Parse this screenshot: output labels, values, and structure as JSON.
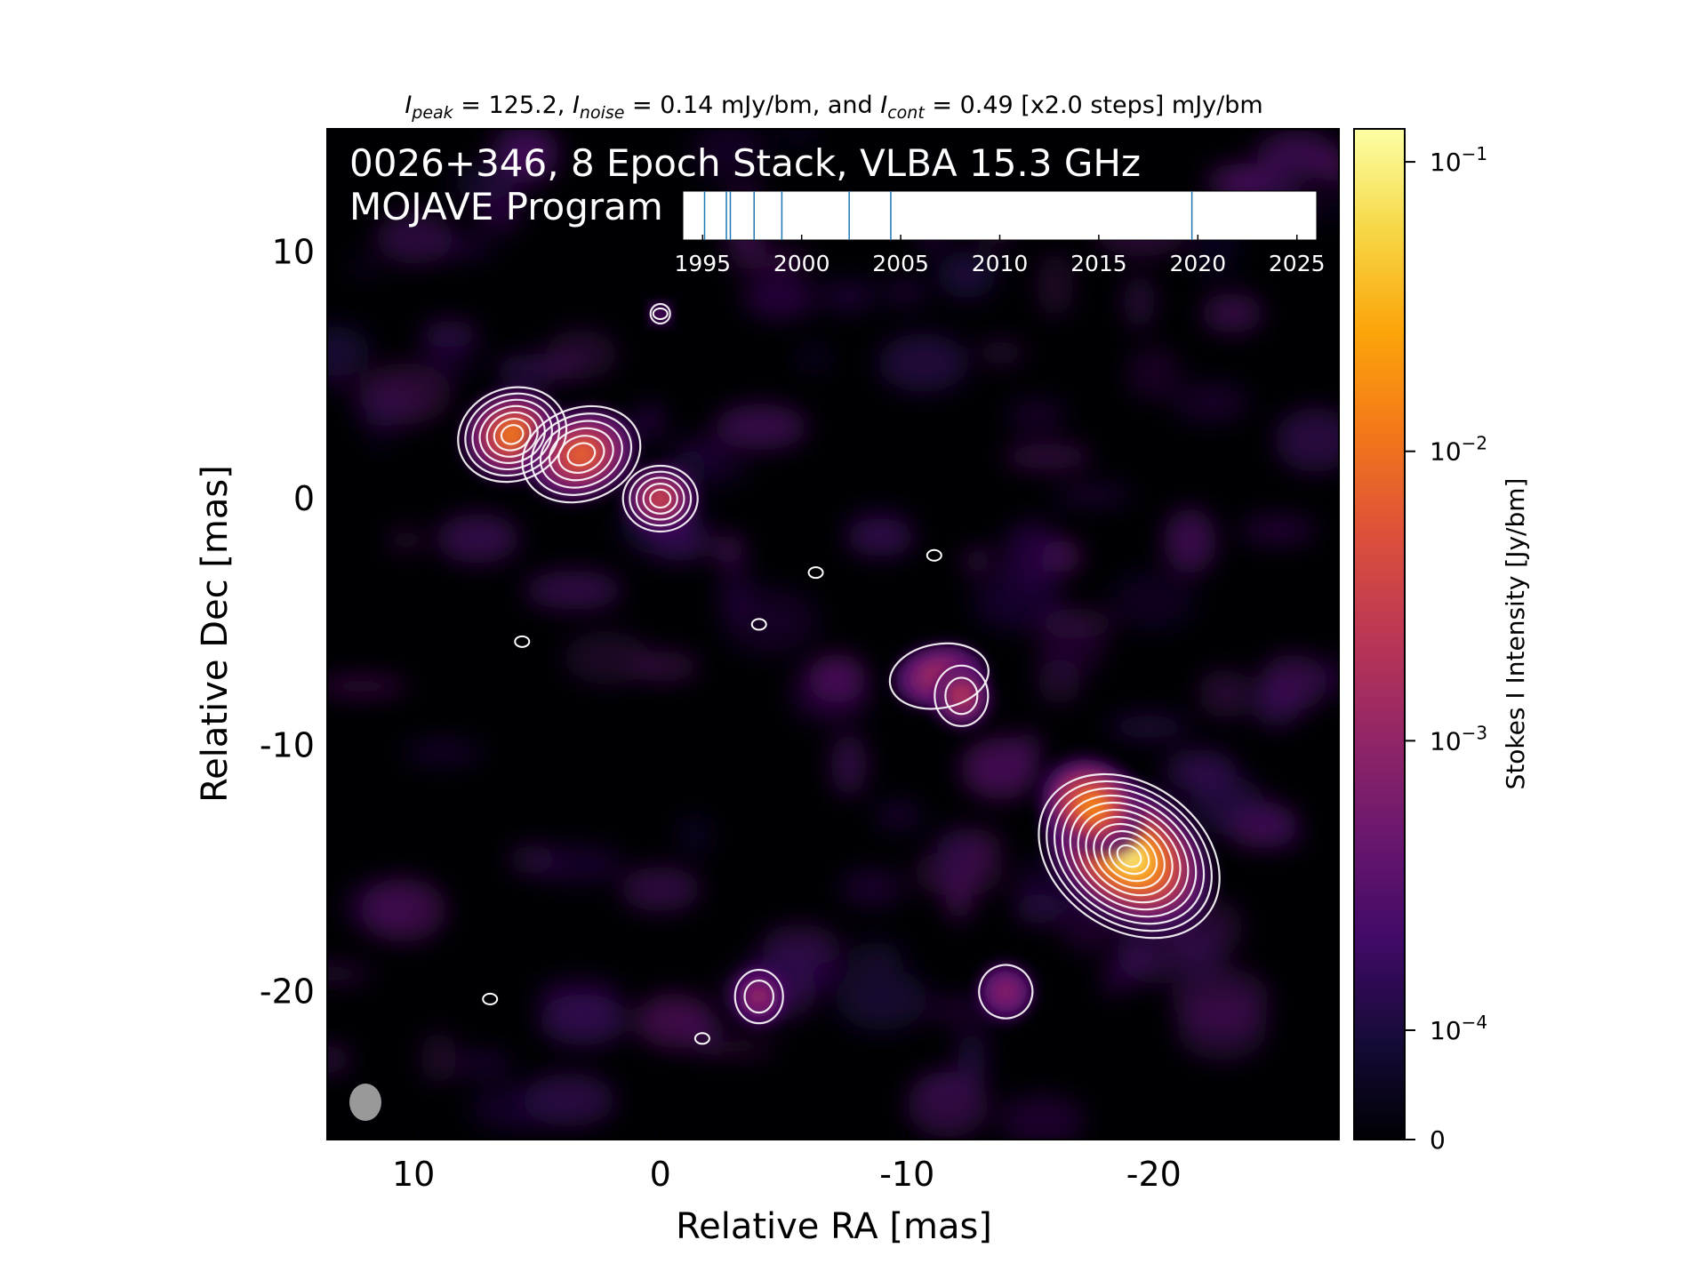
{
  "chart_data": {
    "type": "heatmap",
    "title_parts": {
      "peak_sym": "I",
      "peak_sub": "peak",
      "peak_text": " = 125.2, ",
      "noise_sym": "I",
      "noise_sub": "noise",
      "noise_text": " = 0.14 mJy/bm, and ",
      "cont_sym": "I",
      "cont_sub": "cont",
      "cont_text": " = 0.49 [x2.0 steps] mJy/bm"
    },
    "overlay": {
      "line1": "0026+346, 8 Epoch Stack, VLBA 15.3 GHz",
      "line2": "MOJAVE Program"
    },
    "xlabel": "Relative RA [mas]",
    "ylabel": "Relative Dec [mas]",
    "xlim": [
      13.5,
      -27.5
    ],
    "ylim": [
      -26,
      15
    ],
    "x_ticks": [
      {
        "value": 10,
        "label": "10"
      },
      {
        "value": 0,
        "label": "0"
      },
      {
        "value": -10,
        "label": "-10"
      },
      {
        "value": -20,
        "label": "-20"
      }
    ],
    "y_ticks": [
      {
        "value": 10,
        "label": "10"
      },
      {
        "value": 0,
        "label": "0"
      },
      {
        "value": -10,
        "label": "-10"
      },
      {
        "value": -20,
        "label": "-20"
      }
    ],
    "components": [
      {
        "x": 6.0,
        "y": 2.6,
        "peak": 0.02
      },
      {
        "x": 3.2,
        "y": 1.8,
        "peak": 0.012
      },
      {
        "x": 0.0,
        "y": 0.0,
        "peak": 0.006
      },
      {
        "x": -11.3,
        "y": -7.2,
        "peak": 0.0025
      },
      {
        "x": -12.2,
        "y": -8.0,
        "peak": 0.004
      },
      {
        "x": -19.0,
        "y": -14.5,
        "peak": 0.125
      },
      {
        "x": -17.5,
        "y": -12.5,
        "peak": 0.025
      },
      {
        "x": -4.0,
        "y": -20.2,
        "peak": 0.0018
      },
      {
        "x": -14.0,
        "y": -20.0,
        "peak": 0.0013
      },
      {
        "x": 0.0,
        "y": 7.5,
        "peak": 0.0006
      }
    ],
    "colorbar": {
      "label": "Stokes I Intensity [Jy/bm]",
      "scale": "log",
      "ticks": [
        {
          "value": 0.1,
          "base": "10",
          "exp": "−1"
        },
        {
          "value": 0.01,
          "base": "10",
          "exp": "−2"
        },
        {
          "value": 0.001,
          "base": "10",
          "exp": "−3"
        },
        {
          "value": 0.0001,
          "base": "10",
          "exp": "−4"
        },
        {
          "value": 0,
          "base": "0",
          "exp": ""
        }
      ],
      "colormap": "inferno"
    },
    "epoch_timeline": {
      "xlim": [
        1994,
        2026
      ],
      "epochs": [
        1995.1,
        1996.2,
        1996.4,
        1997.6,
        1999.0,
        2002.4,
        2004.5,
        2019.7
      ],
      "ticks": [
        {
          "value": 1995,
          "label": "1995"
        },
        {
          "value": 2000,
          "label": "2000"
        },
        {
          "value": 2005,
          "label": "2005"
        },
        {
          "value": 2010,
          "label": "2010"
        },
        {
          "value": 2015,
          "label": "2015"
        },
        {
          "value": 2020,
          "label": "2020"
        },
        {
          "value": 2025,
          "label": "2025"
        }
      ]
    },
    "beam": {
      "color": "#999999"
    },
    "contour_color": "#ffffff"
  }
}
